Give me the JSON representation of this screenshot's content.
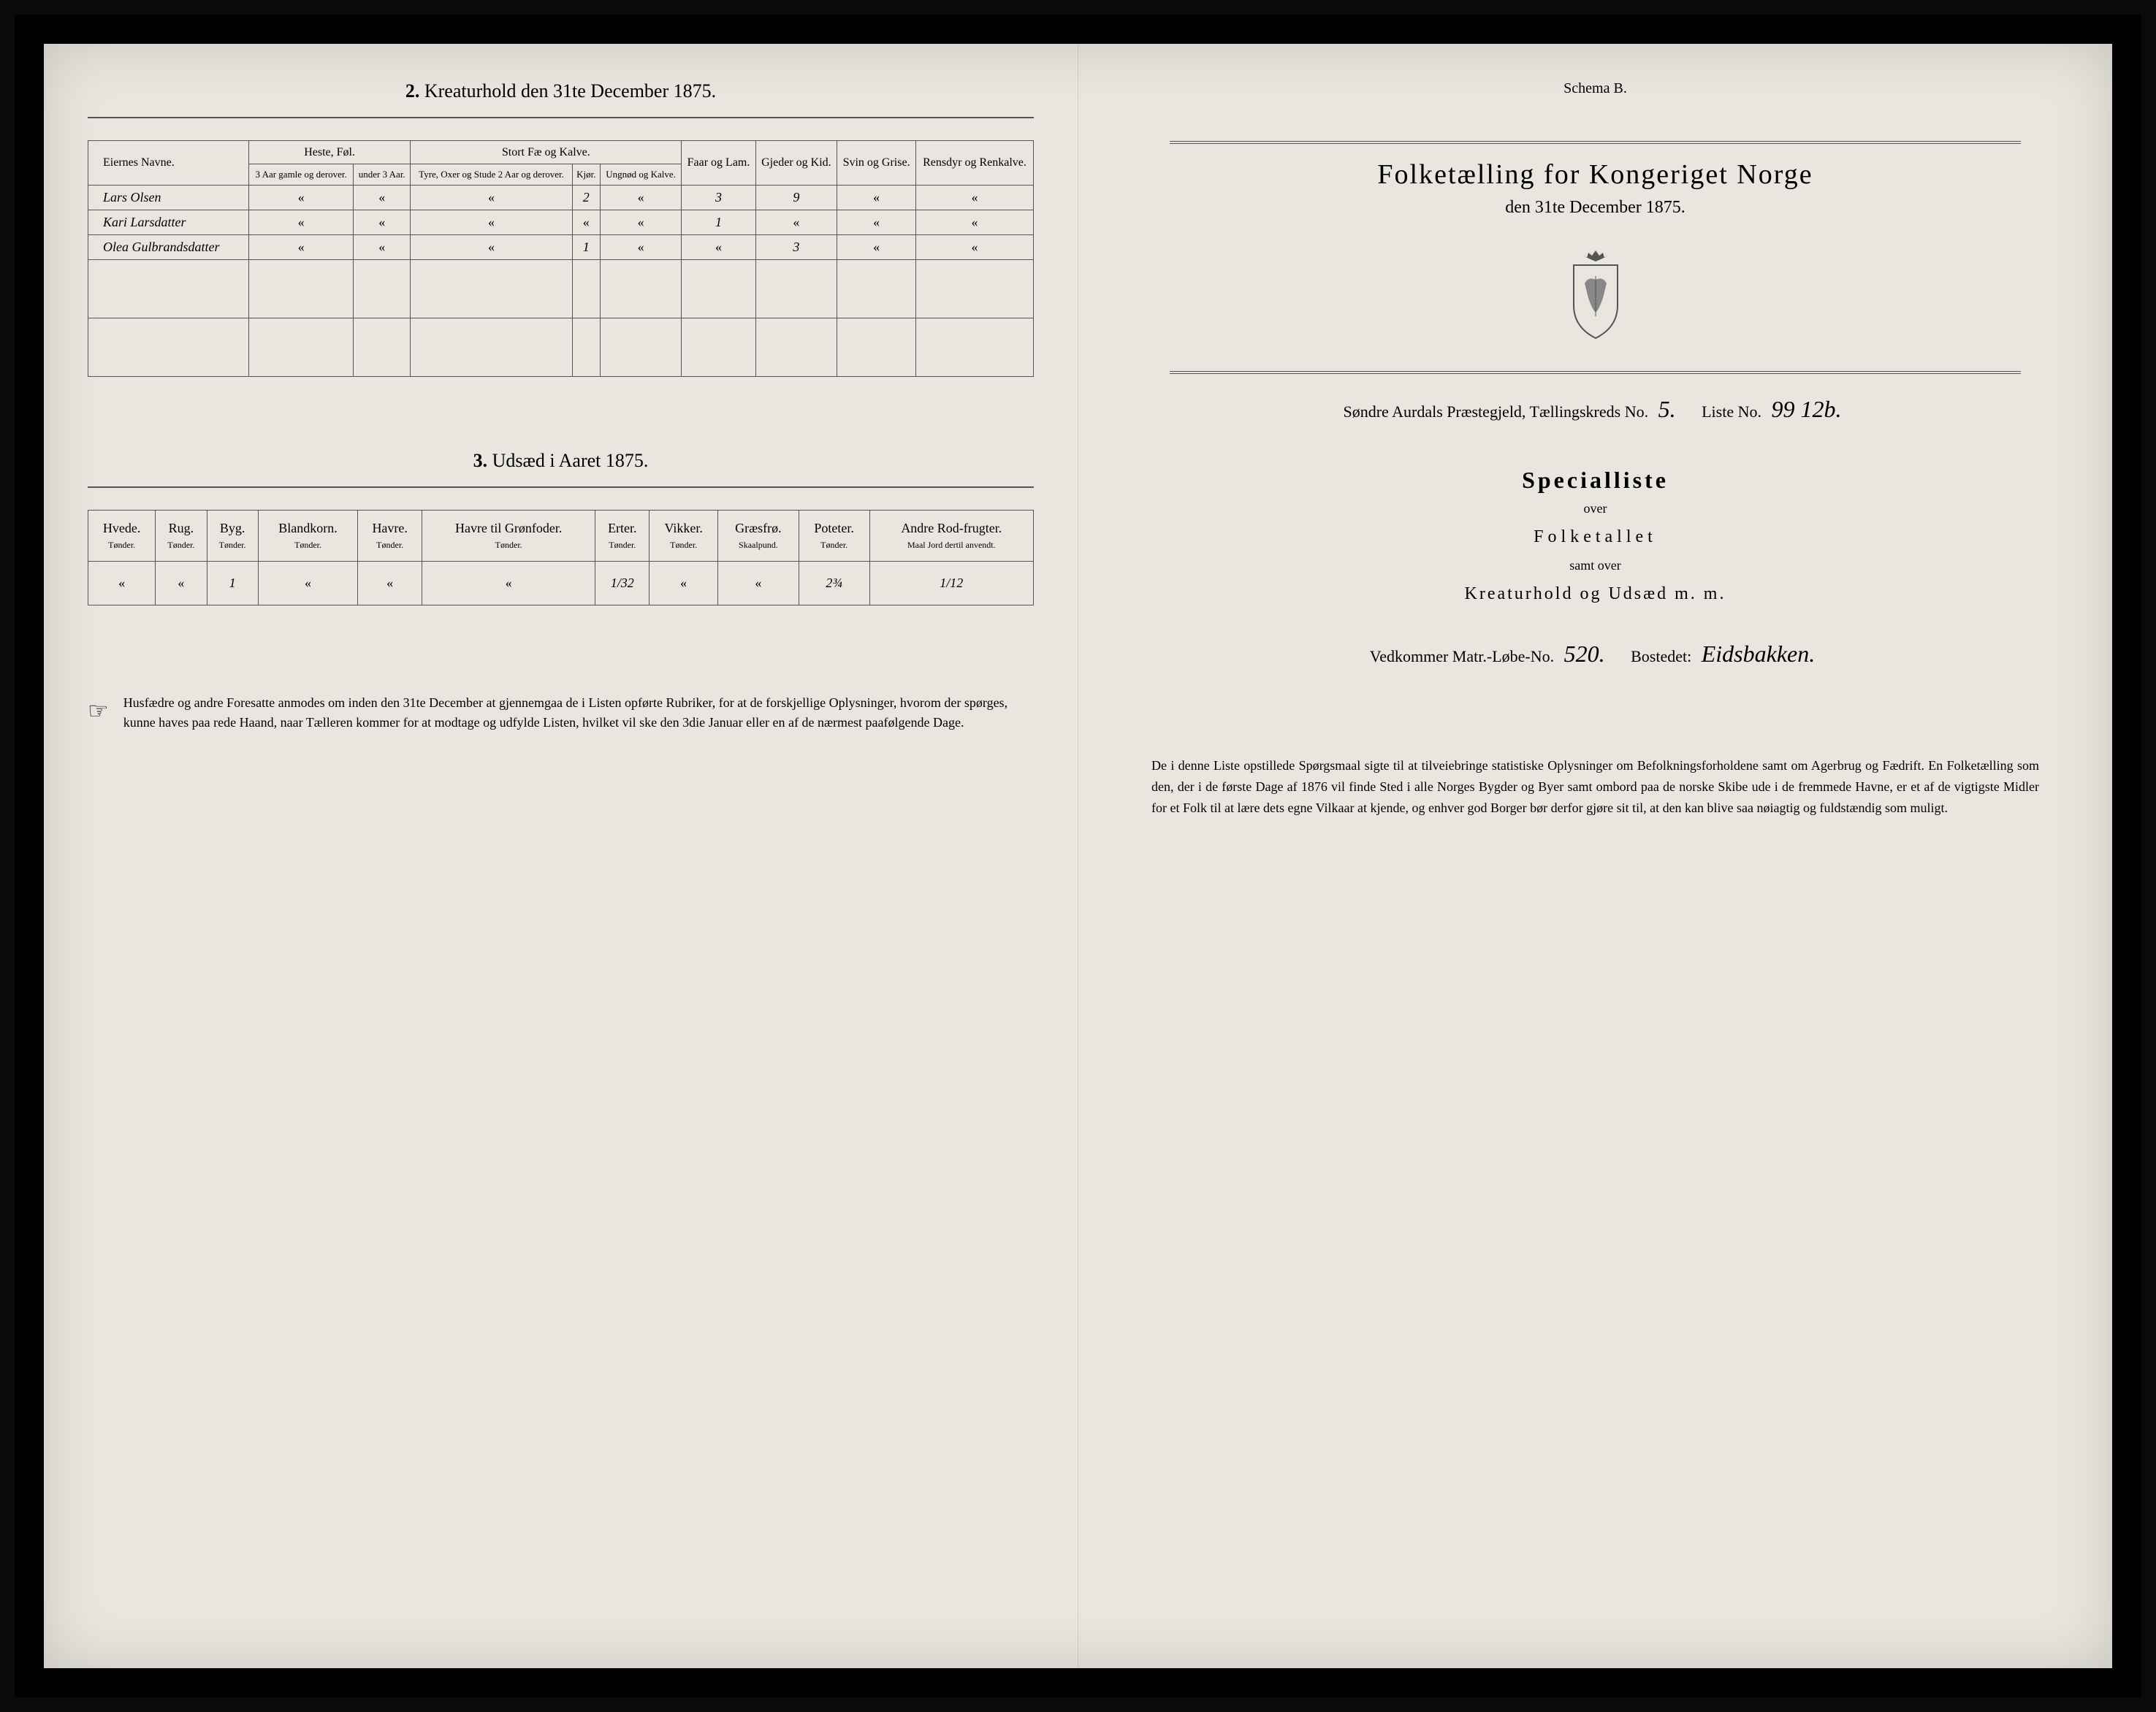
{
  "left": {
    "section2": {
      "title_num": "2.",
      "title": "Kreaturhold den 31te December 1875.",
      "headers": {
        "eier": "Eiernes Navne.",
        "heste": "Heste, Føl.",
        "heste_sub1": "3 Aar gamle og derover.",
        "heste_sub2": "under 3 Aar.",
        "stort": "Stort Fæ og Kalve.",
        "stort_sub1": "Tyre, Oxer og Stude 2 Aar og derover.",
        "stort_sub2": "Kjør.",
        "stort_sub3": "Ungnød og Kalve.",
        "faar": "Faar og Lam.",
        "gjeder": "Gjeder og Kid.",
        "svin": "Svin og Grise.",
        "rensdyr": "Rensdyr og Renkalve."
      },
      "rows": [
        {
          "name": "Lars Olsen",
          "v": [
            "«",
            "«",
            "«",
            "2",
            "«",
            "3",
            "9",
            "«",
            "«"
          ]
        },
        {
          "name": "Kari Larsdatter",
          "v": [
            "«",
            "«",
            "«",
            "«",
            "«",
            "1",
            "«",
            "«",
            "«"
          ]
        },
        {
          "name": "Olea Gulbrandsdatter",
          "v": [
            "«",
            "«",
            "«",
            "1",
            "«",
            "«",
            "3",
            "«",
            "«"
          ]
        }
      ]
    },
    "section3": {
      "title_num": "3.",
      "title": "Udsæd i Aaret 1875.",
      "headers": [
        "Hvede.",
        "Rug.",
        "Byg.",
        "Blandkorn.",
        "Havre.",
        "Havre til Grønfoder.",
        "Erter.",
        "Vikker.",
        "Græsfrø.",
        "Poteter.",
        "Andre Rod-frugter."
      ],
      "subheaders": [
        "Tønder.",
        "Tønder.",
        "Tønder.",
        "Tønder.",
        "Tønder.",
        "Tønder.",
        "Tønder.",
        "Tønder.",
        "Skaalpund.",
        "Tønder.",
        "Maal Jord dertil anvendt."
      ],
      "row": [
        "«",
        "«",
        "1",
        "«",
        "«",
        "«",
        "1/32",
        "«",
        "«",
        "2¾",
        "1/12"
      ]
    },
    "footer": "Husfædre og andre Foresatte anmodes om inden den 31te December at gjennemgaa de i Listen opførte Rubriker, for at de forskjellige Oplysninger, hvorom der spørges, kunne haves paa rede Haand, naar Tælleren kommer for at modtage og udfylde Listen, hvilket vil ske den 3die Januar eller en af de nærmest paafølgende Dage."
  },
  "right": {
    "schema": "Schema B.",
    "title": "Folketælling for Kongeriget Norge",
    "subtitle": "den 31te December 1875.",
    "district_prefix": "Søndre Aurdals Præstegjeld, Tællingskreds No.",
    "district_no": "5.",
    "liste_label": "Liste No.",
    "liste_no": "99 12b.",
    "special": "Specialliste",
    "over": "over",
    "folketallet": "Folketallet",
    "samt": "samt over",
    "kreatur": "Kreaturhold og Udsæd m. m.",
    "vedkommer": "Vedkommer Matr.-Løbe-No.",
    "matr_no": "520.",
    "bosted_label": "Bostedet:",
    "bosted": "Eidsbakken.",
    "footer": "De i denne Liste opstillede Spørgsmaal sigte til at tilveiebringe statistiske Oplysninger om Befolkningsforholdene samt om Agerbrug og Fædrift. En Folketælling som den, der i de første Dage af 1876 vil finde Sted i alle Norges Bygder og Byer samt ombord paa de norske Skibe ude i de fremmede Havne, er et af de vigtigste Midler for et Folk til at lære dets egne Vilkaar at kjende, og enhver god Borger bør derfor gjøre sit til, at den kan blive saa nøiagtig og fuldstændig som muligt."
  }
}
